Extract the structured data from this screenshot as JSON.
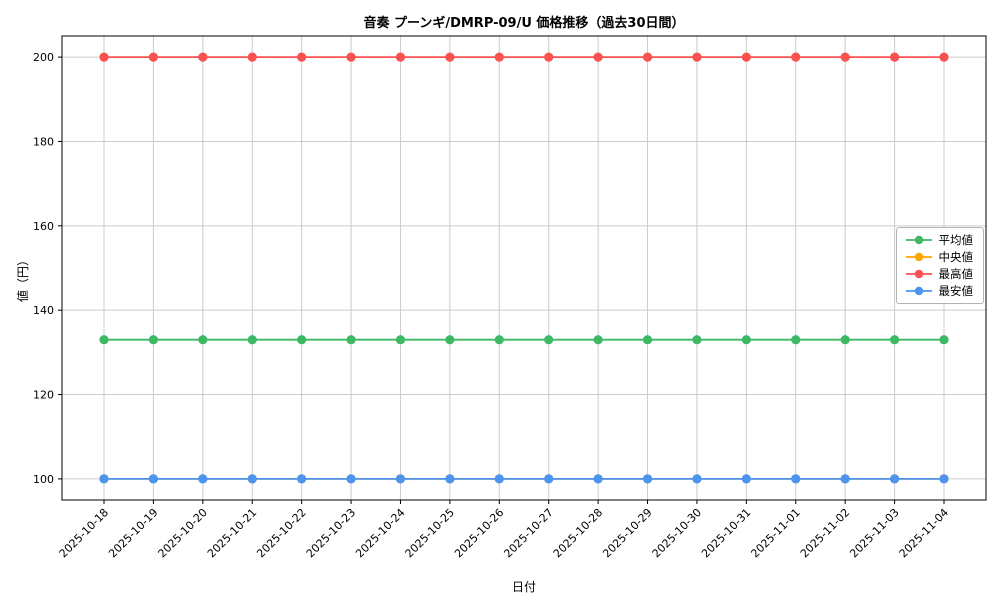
{
  "chart_data": {
    "type": "line",
    "title": "音奏 プーンギ/DMRP-09/U 価格推移（過去30日間）",
    "xlabel": "日付",
    "ylabel": "値（円）",
    "grid": true,
    "legend_position": "center right",
    "ylim": [
      95,
      205
    ],
    "yticks": [
      100,
      120,
      140,
      160,
      180,
      200
    ],
    "x": [
      "2025-10-18",
      "2025-10-19",
      "2025-10-20",
      "2025-10-21",
      "2025-10-22",
      "2025-10-23",
      "2025-10-24",
      "2025-10-25",
      "2025-10-26",
      "2025-10-27",
      "2025-10-28",
      "2025-10-29",
      "2025-10-30",
      "2025-10-31",
      "2025-11-01",
      "2025-11-02",
      "2025-11-03",
      "2025-11-04"
    ],
    "series": [
      {
        "name": "平均値",
        "color": "#3cb962",
        "values": [
          133,
          133,
          133,
          133,
          133,
          133,
          133,
          133,
          133,
          133,
          133,
          133,
          133,
          133,
          133,
          133,
          133,
          133
        ]
      },
      {
        "name": "中央値",
        "color": "#ffa500",
        "values": [
          100,
          100,
          100,
          100,
          100,
          100,
          100,
          100,
          100,
          100,
          100,
          100,
          100,
          100,
          100,
          100,
          100,
          100
        ]
      },
      {
        "name": "最高値",
        "color": "#fa5151",
        "values": [
          200,
          200,
          200,
          200,
          200,
          200,
          200,
          200,
          200,
          200,
          200,
          200,
          200,
          200,
          200,
          200,
          200,
          200
        ]
      },
      {
        "name": "最安値",
        "color": "#4d94f0",
        "values": [
          100,
          100,
          100,
          100,
          100,
          100,
          100,
          100,
          100,
          100,
          100,
          100,
          100,
          100,
          100,
          100,
          100,
          100
        ]
      }
    ],
    "plot_colors": {
      "grid": "#cccccc",
      "axis_border": "#000000",
      "background": "#ffffff"
    }
  }
}
